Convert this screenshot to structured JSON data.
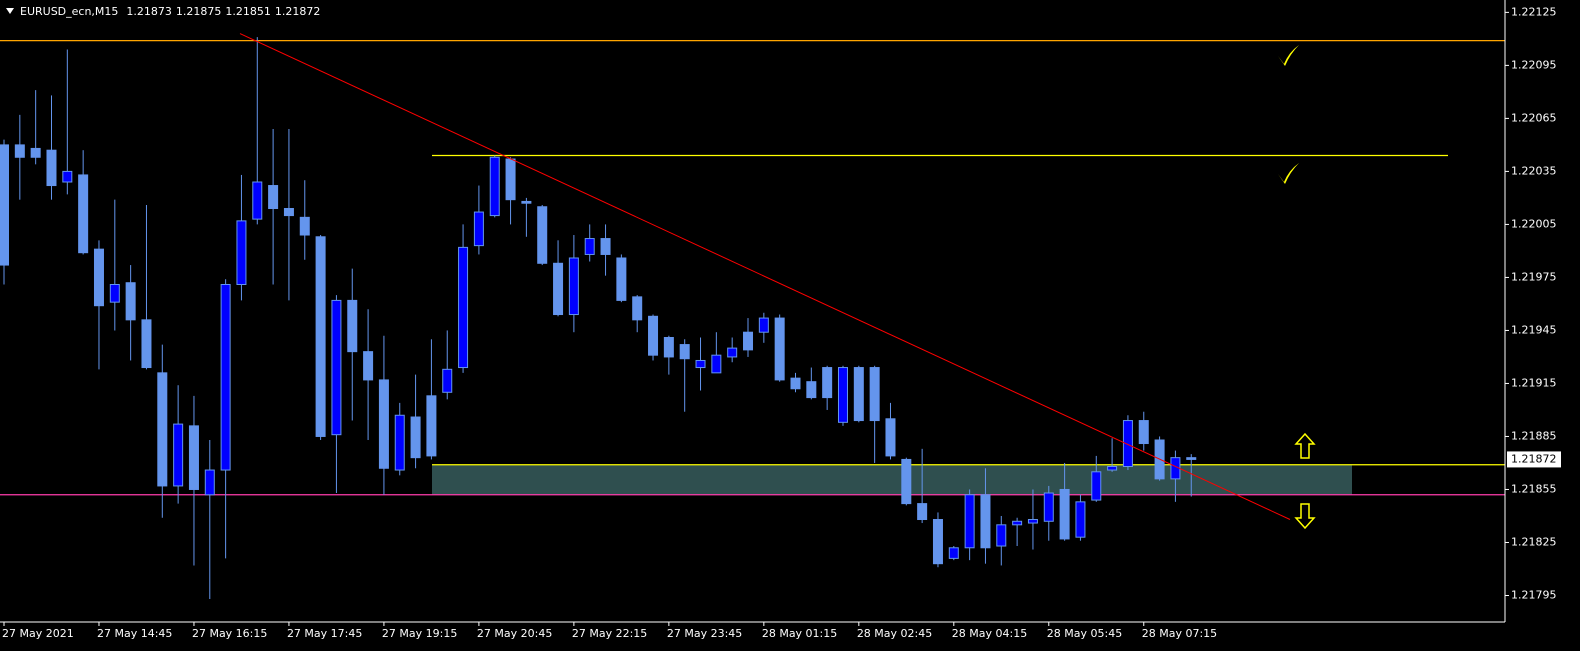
{
  "chart_data": {
    "type": "candlestick",
    "title": "EURUSD_ecn,M15",
    "categories": [
      "27 May 2021",
      null,
      null,
      null,
      null,
      null,
      "27 May 14:45",
      null,
      null,
      null,
      null,
      null,
      "27 May 16:15",
      null,
      null,
      null,
      null,
      null,
      "27 May 17:45",
      null,
      null,
      null,
      null,
      null,
      "27 May 19:15",
      null,
      null,
      null,
      null,
      null,
      "27 May 20:45",
      null,
      null,
      null,
      null,
      null,
      "27 May 22:15",
      null,
      null,
      null,
      null,
      null,
      "27 May 23:45",
      null,
      null,
      null,
      null,
      null,
      "28 May 01:15",
      null,
      null,
      null,
      null,
      null,
      "28 May 02:45",
      null,
      null,
      null,
      null,
      null,
      "28 May 04:15",
      null,
      null,
      null,
      null,
      null,
      "28 May 05:45",
      null,
      null,
      null,
      null,
      null,
      "28 May 07:15",
      null,
      null,
      null
    ],
    "open": [
      1.2205,
      1.2205,
      1.22048,
      1.22047,
      1.22029,
      1.22033,
      1.21991,
      1.21961,
      1.21972,
      1.21951,
      1.21921,
      1.21857,
      1.21891,
      1.21852,
      1.21866,
      1.21971,
      1.22008,
      1.22027,
      1.22014,
      1.22009,
      1.21998,
      1.21886,
      1.21962,
      1.21933,
      1.21917,
      1.21866,
      1.21896,
      1.21908,
      1.2191,
      1.21924,
      1.21993,
      1.2201,
      1.22042,
      1.22018,
      1.22015,
      1.21983,
      1.21954,
      1.21988,
      1.21997,
      1.21986,
      1.21964,
      1.21953,
      1.21941,
      1.21937,
      1.21924,
      1.21921,
      1.2193,
      1.21944,
      1.21944,
      1.21952,
      1.21918,
      1.21916,
      1.21924,
      1.21893,
      1.21924,
      1.21924,
      1.21895,
      1.21872,
      1.21847,
      1.21838,
      1.21816,
      1.21822,
      1.21852,
      1.21823,
      1.21835,
      1.21836,
      1.21837,
      1.21855,
      1.21828,
      1.21849,
      1.21866,
      1.21868,
      1.21894,
      1.21883,
      1.21861,
      1.21873
    ],
    "high": [
      1.22053,
      1.22067,
      1.22081,
      1.22078,
      1.22104,
      1.22047,
      1.21996,
      1.22019,
      1.21982,
      1.22016,
      1.21937,
      1.21914,
      1.21908,
      1.21883,
      1.21974,
      1.22033,
      1.22111,
      1.22059,
      1.22059,
      1.2203,
      1.21999,
      1.21965,
      1.2198,
      1.21957,
      1.21942,
      1.21904,
      1.2192,
      1.2194,
      1.21945,
      1.22005,
      1.22027,
      1.22044,
      1.22043,
      1.2202,
      1.22016,
      1.21996,
      1.21999,
      1.22005,
      1.22005,
      1.21988,
      1.21965,
      1.21954,
      1.21942,
      1.2194,
      1.21941,
      1.21944,
      1.21941,
      1.21952,
      1.21955,
      1.21954,
      1.21921,
      1.21924,
      1.21925,
      1.21925,
      1.21925,
      1.21925,
      1.21904,
      1.21873,
      1.21878,
      1.21842,
      1.21823,
      1.21855,
      1.21867,
      1.2184,
      1.21839,
      1.21855,
      1.21857,
      1.2187,
      1.21852,
      1.21874,
      1.21884,
      1.21897,
      1.21899,
      1.21885,
      1.21877,
      1.21875
    ],
    "low": [
      1.21971,
      1.22019,
      1.22039,
      1.22019,
      1.22022,
      1.21988,
      1.21923,
      1.21945,
      1.21928,
      1.21923,
      1.21839,
      1.21847,
      1.21812,
      1.21793,
      1.21816,
      1.21962,
      1.22005,
      1.21971,
      1.21962,
      1.21985,
      1.21883,
      1.21853,
      1.21894,
      1.21883,
      1.21852,
      1.21863,
      1.21867,
      1.21872,
      1.21906,
      1.21921,
      1.21988,
      1.22009,
      1.22005,
      1.21998,
      1.21982,
      1.21953,
      1.21944,
      1.21984,
      1.21976,
      1.21961,
      1.21944,
      1.21928,
      1.2192,
      1.21899,
      1.21911,
      1.21921,
      1.21927,
      1.2193,
      1.21938,
      1.21916,
      1.2191,
      1.21906,
      1.219,
      1.21891,
      1.21893,
      1.2187,
      1.21872,
      1.21846,
      1.21836,
      1.21811,
      1.21815,
      1.21815,
      1.21813,
      1.21812,
      1.21823,
      1.21821,
      1.21826,
      1.21826,
      1.21826,
      1.21848,
      1.21865,
      1.21866,
      1.21877,
      1.2186,
      1.21848,
      1.21851
    ],
    "close": [
      1.21982,
      1.22043,
      1.22043,
      1.22027,
      1.22035,
      1.21989,
      1.21959,
      1.21971,
      1.21951,
      1.21924,
      1.21857,
      1.21892,
      1.21855,
      1.21866,
      1.21971,
      1.22007,
      1.22029,
      1.22014,
      1.2201,
      1.21999,
      1.21885,
      1.21962,
      1.21933,
      1.21917,
      1.21867,
      1.21897,
      1.21873,
      1.21874,
      1.21923,
      1.21992,
      1.22012,
      1.22043,
      1.22019,
      1.22017,
      1.21983,
      1.21954,
      1.21986,
      1.21997,
      1.21988,
      1.21962,
      1.21951,
      1.21931,
      1.2193,
      1.21929,
      1.21928,
      1.21931,
      1.21935,
      1.21934,
      1.21952,
      1.21917,
      1.21912,
      1.21907,
      1.21907,
      1.21924,
      1.21894,
      1.21894,
      1.21874,
      1.21847,
      1.21838,
      1.21813,
      1.21822,
      1.21852,
      1.21822,
      1.21835,
      1.21837,
      1.21838,
      1.21853,
      1.21827,
      1.21848,
      1.21865,
      1.21868,
      1.21894,
      1.21881,
      1.21861,
      1.21873,
      1.21872
    ],
    "ylim": [
      1.2178,
      1.22132
    ],
    "yticks": [
      1.22125,
      1.22095,
      1.22065,
      1.22035,
      1.22005,
      1.21975,
      1.21945,
      1.21915,
      1.21885,
      1.21855,
      1.21825,
      1.21795
    ],
    "bull_color": "#0000ff",
    "bear_color": "#6495ed",
    "wick_color": "#6495ed",
    "levels": [
      {
        "value": 1.22109,
        "color": "#ffa500"
      },
      {
        "value": 1.22044,
        "color": "#ffff00"
      },
      {
        "value": 1.21869,
        "color": "#ffff00"
      },
      {
        "value": 1.21852,
        "color": "#ff3cac"
      }
    ],
    "zone": {
      "range": [
        1.21852,
        1.21869
      ],
      "color": "#2f4f4f"
    },
    "trendline": {
      "values": [
        1.22113,
        1.21838
      ],
      "color": "#ff0000"
    }
  }
}
